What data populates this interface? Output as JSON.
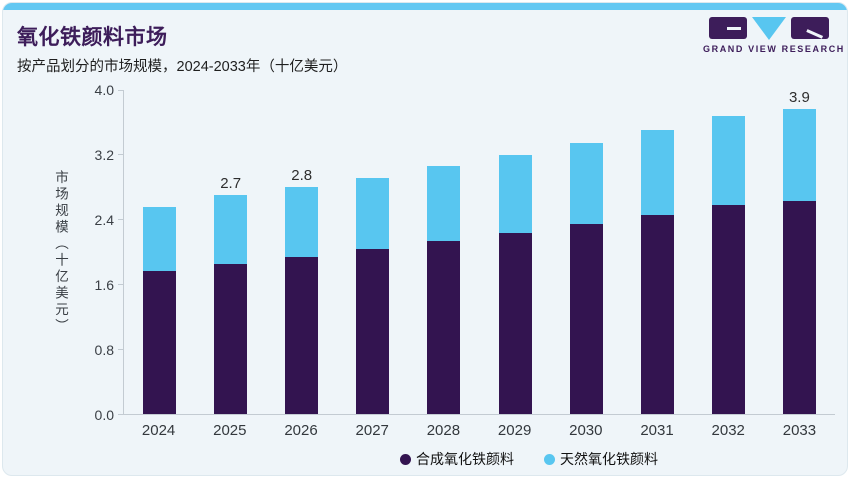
{
  "header": {
    "title": "氧化铁颜料市场",
    "subtitle": "按产品划分的市场规模，2024-2033年（十亿美元）",
    "logo_text": "GRAND VIEW RESEARCH"
  },
  "colors": {
    "synthetic": "#331450",
    "natural": "#58C6F0",
    "title_purple": "#3D1D5A",
    "top_strip": "#63C8F2",
    "card_bg": "#EFF5F9",
    "axis_line": "#C3CBD2",
    "axis_text": "#3A3F45"
  },
  "chart_data": {
    "type": "bar",
    "stacked": true,
    "title": "氧化铁颜料市场",
    "subtitle": "按产品划分的市场规模，2024-2033年（十亿美元）",
    "categories": [
      "2024",
      "2025",
      "2026",
      "2027",
      "2028",
      "2029",
      "2030",
      "2031",
      "2032",
      "2033"
    ],
    "series": [
      {
        "name": "合成氧化铁颜料",
        "color": "#331450",
        "values": [
          1.76,
          1.85,
          1.94,
          2.04,
          2.13,
          2.24,
          2.35,
          2.46,
          2.58,
          2.72
        ]
      },
      {
        "name": "天然氧化铁颜料",
        "color": "#58C6F0",
        "values": [
          0.79,
          0.85,
          0.86,
          0.88,
          0.93,
          0.96,
          1.0,
          1.05,
          1.1,
          1.18
        ]
      }
    ],
    "totals": [
      2.55,
      2.7,
      2.8,
      2.92,
      3.06,
      3.2,
      3.35,
      3.51,
      3.68,
      3.9
    ],
    "bar_value_labels": [
      "",
      "2.7",
      "2.8",
      "",
      "",
      "",
      "",
      "",
      "",
      "3.9"
    ],
    "ylabel": "市场规模（十亿美元）",
    "xlabel": "",
    "ylim": [
      0,
      4.0
    ],
    "yticks": [
      "0.0",
      "0.8",
      "1.6",
      "2.4",
      "3.2",
      "4.0"
    ],
    "grid": false,
    "legend_position": "bottom"
  }
}
